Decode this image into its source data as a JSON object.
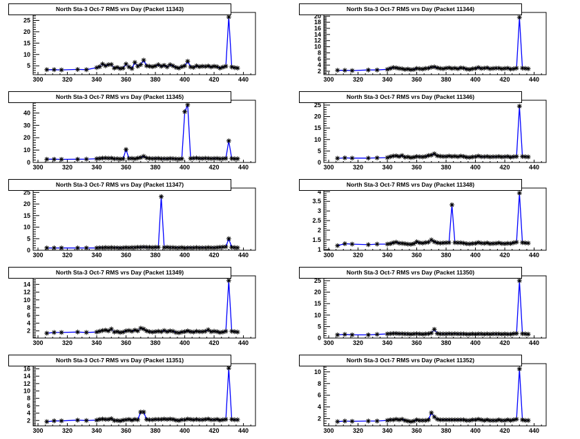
{
  "chart_data": [
    {
      "type": "line",
      "title": "North Sta-3 Oct-7 RMS vrs Day (Packet 11343)",
      "xlim": [
        296.7,
        448.2
      ],
      "ylim": [
        1.1,
        28.5
      ],
      "xticks": [
        300,
        320,
        340,
        360,
        380,
        400,
        420,
        440
      ],
      "yticks": [
        5,
        10,
        15,
        20,
        25
      ],
      "line_color": "#0000ff",
      "marker": "asterisk",
      "values": [
        3.3,
        3.3,
        3.2,
        3.4,
        3.3,
        4.2,
        4.6,
        5.8,
        5.0,
        5.5,
        5.6,
        4.0,
        4.3,
        3.8,
        4.0,
        5.8,
        4.5,
        3.8,
        6.5,
        4.8,
        5.5,
        7.5,
        5.0,
        4.8,
        4.6,
        4.9,
        5.5,
        4.8,
        5.2,
        4.5,
        5.5,
        5.0,
        4.3,
        4.0,
        4.6,
        5.0,
        7.0,
        4.5,
        4.3,
        5.0,
        4.6,
        4.8,
        4.7,
        4.9,
        4.5,
        4.8,
        4.6,
        4.0,
        4.4,
        4.8,
        26.5,
        4.5,
        4.2,
        4.0
      ]
    },
    {
      "type": "line",
      "title": "North Sta-3 Oct-7 RMS vrs Day (Packet 11344)",
      "xlim": [
        296.7,
        448.2
      ],
      "ylim": [
        0.87,
        21.2
      ],
      "xticks": [
        300,
        320,
        340,
        360,
        380,
        400,
        420,
        440
      ],
      "yticks": [
        2,
        4,
        6,
        8,
        10,
        12,
        14,
        16,
        18,
        20
      ],
      "line_color": "#0000ff",
      "marker": "asterisk",
      "values": [
        2.3,
        2.3,
        2.2,
        2.4,
        2.4,
        2.6,
        2.9,
        3.2,
        3.1,
        2.9,
        2.8,
        2.6,
        2.7,
        2.5,
        2.6,
        2.9,
        2.8,
        2.7,
        2.9,
        3.0,
        3.3,
        3.4,
        3.1,
        2.9,
        2.8,
        3.0,
        3.1,
        2.9,
        3.0,
        2.8,
        3.1,
        3.0,
        2.7,
        2.6,
        2.8,
        2.9,
        3.2,
        2.9,
        3.0,
        3.1,
        2.8,
        2.9,
        3.0,
        3.0,
        2.8,
        2.9,
        3.0,
        2.7,
        2.8,
        3.0,
        19.6,
        3.0,
        2.9,
        2.8
      ]
    },
    {
      "type": "line",
      "title": "North Sta-3 Oct-7 RMS vrs Day (Packet 11345)",
      "xlim": [
        296.7,
        448.2
      ],
      "ylim": [
        0,
        50.3
      ],
      "xticks": [
        300,
        320,
        340,
        360,
        380,
        400,
        420,
        440
      ],
      "yticks": [
        0,
        10,
        20,
        30,
        40,
        50
      ],
      "line_color": "#0000ff",
      "marker": "asterisk",
      "values": [
        2.6,
        2.6,
        2.5,
        2.6,
        2.7,
        3.0,
        3.2,
        3.5,
        3.6,
        3.4,
        3.5,
        3.0,
        3.1,
        2.8,
        3.0,
        10.5,
        3.2,
        3.3,
        3.0,
        3.5,
        4.0,
        5.0,
        3.6,
        3.3,
        3.1,
        3.2,
        3.3,
        3.0,
        3.1,
        3.0,
        3.2,
        3.1,
        2.9,
        2.8,
        3.0,
        41.0,
        46.5,
        3.2,
        3.4,
        3.6,
        3.3,
        3.2,
        3.4,
        3.3,
        3.1,
        3.2,
        3.3,
        3.0,
        3.1,
        3.3,
        17.5,
        3.2,
        3.0,
        3.0
      ]
    },
    {
      "type": "line",
      "title": "North Sta-3 Oct-7 RMS vrs Day (Packet 11346)",
      "xlim": [
        296.7,
        448.2
      ],
      "ylim": [
        0,
        27.1
      ],
      "xticks": [
        300,
        320,
        340,
        360,
        380,
        400,
        420,
        440
      ],
      "yticks": [
        0,
        5,
        10,
        15,
        20,
        25
      ],
      "line_color": "#0000ff",
      "marker": "asterisk",
      "values": [
        1.8,
        2.0,
        1.9,
        1.9,
        2.0,
        2.1,
        2.5,
        2.8,
        2.9,
        2.6,
        3.0,
        2.3,
        2.4,
        2.1,
        2.3,
        2.6,
        2.5,
        2.4,
        2.6,
        3.0,
        3.2,
        3.8,
        2.9,
        2.7,
        2.6,
        2.6,
        2.8,
        2.6,
        2.7,
        2.5,
        2.8,
        2.6,
        2.3,
        2.2,
        2.4,
        2.5,
        2.8,
        2.5,
        2.5,
        2.6,
        2.4,
        2.5,
        2.5,
        2.6,
        2.4,
        2.5,
        2.6,
        2.3,
        2.5,
        2.6,
        24.5,
        2.6,
        2.5,
        2.4
      ]
    },
    {
      "type": "line",
      "title": "North Sta-3 Oct-7 RMS vrs Day (Packet 11347)",
      "xlim": [
        296.7,
        448.2
      ],
      "ylim": [
        0,
        26.9
      ],
      "xticks": [
        300,
        320,
        340,
        360,
        380,
        400,
        420,
        440
      ],
      "yticks": [
        0,
        5,
        10,
        15,
        20,
        25
      ],
      "line_color": "#0000ff",
      "marker": "asterisk",
      "values": [
        1.0,
        1.0,
        1.0,
        1.0,
        1.0,
        1.0,
        1.1,
        1.1,
        1.2,
        1.1,
        1.2,
        1.1,
        1.1,
        1.0,
        1.1,
        1.2,
        1.1,
        1.2,
        1.2,
        1.3,
        1.3,
        1.4,
        1.3,
        1.3,
        1.2,
        1.3,
        1.3,
        23.2,
        1.2,
        1.3,
        1.2,
        1.2,
        1.1,
        1.1,
        1.2,
        1.0,
        1.1,
        1.1,
        1.1,
        1.2,
        1.1,
        1.1,
        1.1,
        1.2,
        1.1,
        1.1,
        1.2,
        1.3,
        1.4,
        1.5,
        5.0,
        1.3,
        1.2,
        1.1
      ]
    },
    {
      "type": "line",
      "title": "North Sta-3 Oct-7 RMS vrs Day (Packet 11348)",
      "xlim": [
        296.7,
        448.2
      ],
      "ylim": [
        0.96,
        4.19
      ],
      "xticks": [
        300,
        320,
        340,
        360,
        380,
        400,
        420,
        440
      ],
      "yticks": [
        1,
        1.5,
        2,
        2.5,
        3,
        3.5,
        4
      ],
      "line_color": "#0000ff",
      "marker": "asterisk",
      "values": [
        1.2,
        1.3,
        1.28,
        1.25,
        1.28,
        1.28,
        1.3,
        1.35,
        1.38,
        1.33,
        1.32,
        1.3,
        1.28,
        1.27,
        1.3,
        1.4,
        1.35,
        1.33,
        1.36,
        1.38,
        1.5,
        1.4,
        1.35,
        1.33,
        1.34,
        1.35,
        1.36,
        3.32,
        1.36,
        1.35,
        1.35,
        1.33,
        1.3,
        1.29,
        1.31,
        1.32,
        1.36,
        1.33,
        1.32,
        1.34,
        1.3,
        1.31,
        1.32,
        1.34,
        1.31,
        1.3,
        1.32,
        1.31,
        1.35,
        1.38,
        3.93,
        1.36,
        1.34,
        1.33
      ]
    },
    {
      "type": "line",
      "title": "North Sta-3 Oct-7 RMS vrs Day (Packet 11349)",
      "xlim": [
        296.7,
        448.2
      ],
      "ylim": [
        0.15,
        16.2
      ],
      "xticks": [
        300,
        320,
        340,
        360,
        380,
        400,
        420,
        440
      ],
      "yticks": [
        2,
        4,
        6,
        8,
        10,
        12,
        14,
        16
      ],
      "line_color": "#0000ff",
      "marker": "asterisk",
      "values": [
        1.4,
        1.6,
        1.6,
        1.7,
        1.6,
        1.7,
        1.9,
        2.1,
        2.2,
        2.0,
        2.5,
        1.7,
        1.8,
        1.6,
        1.7,
        2.0,
        2.1,
        1.9,
        2.2,
        2.0,
        2.7,
        2.5,
        2.0,
        1.8,
        1.7,
        1.8,
        1.9,
        1.8,
        2.1,
        1.8,
        2.0,
        1.9,
        1.6,
        1.5,
        1.7,
        1.8,
        2.0,
        1.8,
        1.7,
        1.9,
        1.8,
        1.8,
        1.9,
        2.3,
        1.8,
        1.9,
        1.8,
        1.6,
        1.7,
        1.9,
        15.0,
        1.9,
        1.8,
        1.7
      ]
    },
    {
      "type": "line",
      "title": "North Sta-3 Oct-7 RMS vrs Day (Packet 11350)",
      "xlim": [
        296.7,
        448.2
      ],
      "ylim": [
        0,
        27.1
      ],
      "xticks": [
        300,
        320,
        340,
        360,
        380,
        400,
        420,
        440
      ],
      "yticks": [
        0,
        5,
        10,
        15,
        20,
        25
      ],
      "line_color": "#0000ff",
      "marker": "asterisk",
      "values": [
        1.4,
        1.6,
        1.4,
        1.4,
        1.6,
        1.8,
        1.9,
        2.0,
        2.0,
        1.9,
        1.9,
        1.8,
        1.8,
        1.7,
        1.8,
        1.9,
        1.8,
        1.7,
        1.8,
        1.9,
        2.2,
        3.8,
        2.0,
        1.8,
        1.8,
        1.8,
        1.9,
        1.8,
        1.9,
        1.8,
        1.8,
        1.8,
        1.7,
        1.7,
        1.8,
        1.7,
        1.8,
        1.8,
        1.7,
        1.8,
        1.7,
        1.8,
        1.8,
        1.8,
        1.7,
        1.8,
        1.7,
        1.7,
        1.9,
        2.0,
        25.0,
        1.9,
        1.8,
        1.7
      ]
    },
    {
      "type": "line",
      "title": "North Sta-3 Oct-7 RMS vrs Day (Packet 11351)",
      "xlim": [
        296.7,
        448.2
      ],
      "ylim": [
        0.55,
        17.4
      ],
      "xticks": [
        300,
        320,
        340,
        360,
        380,
        400,
        420,
        440
      ],
      "yticks": [
        2,
        4,
        6,
        8,
        10,
        12,
        14,
        16
      ],
      "line_color": "#0000ff",
      "marker": "asterisk",
      "values": [
        1.7,
        1.9,
        1.9,
        2.1,
        2.0,
        2.1,
        2.3,
        2.4,
        2.3,
        2.3,
        2.5,
        2.0,
        2.0,
        1.9,
        2.1,
        2.2,
        2.3,
        2.1,
        2.3,
        2.2,
        4.3,
        4.3,
        2.3,
        2.2,
        2.2,
        2.3,
        2.3,
        2.3,
        2.4,
        2.3,
        2.4,
        2.3,
        2.1,
        2.0,
        2.2,
        2.2,
        2.4,
        2.3,
        2.2,
        2.3,
        2.2,
        2.2,
        2.3,
        2.4,
        2.2,
        2.2,
        2.3,
        2.1,
        2.2,
        2.3,
        16.2,
        2.3,
        2.2,
        2.2
      ]
    },
    {
      "type": "line",
      "title": "North Sta-3 Oct-7 RMS vrs Day (Packet 11352)",
      "xlim": [
        296.7,
        448.2
      ],
      "ylim": [
        0.77,
        11.4
      ],
      "xticks": [
        300,
        320,
        340,
        360,
        380,
        400,
        420,
        440
      ],
      "yticks": [
        2,
        4,
        6,
        8,
        10
      ],
      "line_color": "#0000ff",
      "marker": "asterisk",
      "values": [
        1.5,
        1.6,
        1.55,
        1.6,
        1.6,
        1.7,
        1.8,
        1.8,
        1.9,
        1.8,
        1.9,
        1.7,
        1.6,
        1.5,
        1.6,
        1.8,
        1.7,
        1.7,
        1.7,
        1.8,
        3.0,
        2.3,
        1.9,
        1.8,
        1.8,
        1.8,
        1.8,
        1.8,
        1.8,
        1.8,
        1.8,
        1.8,
        1.7,
        1.7,
        1.8,
        1.8,
        1.9,
        1.8,
        1.7,
        1.8,
        1.7,
        1.7,
        1.7,
        1.8,
        1.7,
        1.7,
        1.8,
        1.7,
        1.8,
        1.9,
        10.5,
        1.8,
        1.7,
        1.7
      ]
    }
  ],
  "x_days": [
    306,
    311,
    316,
    327,
    333,
    340,
    342,
    344,
    346,
    348,
    350,
    352,
    354,
    356,
    358,
    360,
    362,
    364,
    366,
    368,
    370,
    372,
    374,
    376,
    378,
    380,
    382,
    384,
    386,
    388,
    390,
    392,
    394,
    396,
    398,
    400,
    402,
    404,
    406,
    408,
    410,
    412,
    414,
    416,
    418,
    420,
    422,
    424,
    426,
    428,
    430,
    432,
    434,
    436
  ]
}
